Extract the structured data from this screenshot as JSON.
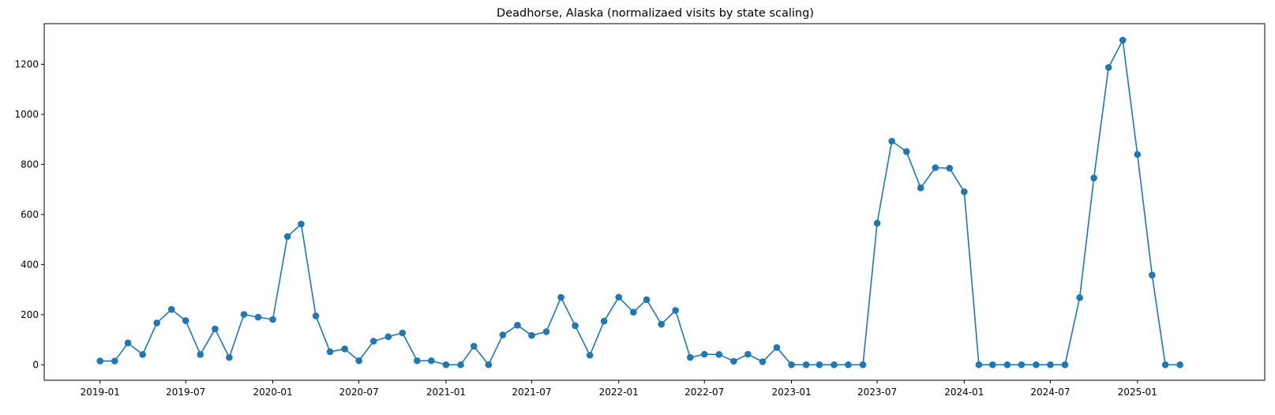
{
  "chart_data": {
    "type": "line",
    "title": "Deadhorse, Alaska (normalizaed visits by state scaling)",
    "xlabel": "",
    "ylabel": "",
    "color": "#1f77b4",
    "markers": true,
    "grid": false,
    "xlim": [
      "2018-09-05",
      "2025-09-27"
    ],
    "ylim": [
      -62,
      1362
    ],
    "x_ticks": [
      "2019-01",
      "2019-07",
      "2020-01",
      "2020-07",
      "2021-01",
      "2021-07",
      "2022-01",
      "2022-07",
      "2023-01",
      "2023-07",
      "2024-01",
      "2024-07",
      "2025-01"
    ],
    "y_ticks": [
      0,
      200,
      400,
      600,
      800,
      1000,
      1200
    ],
    "x": [
      "2019-01",
      "2019-02",
      "2019-03",
      "2019-04",
      "2019-05",
      "2019-06",
      "2019-07",
      "2019-08",
      "2019-09",
      "2019-10",
      "2019-11",
      "2019-12",
      "2020-01",
      "2020-02",
      "2020-03",
      "2020-04",
      "2020-05",
      "2020-06",
      "2020-07",
      "2020-08",
      "2020-09",
      "2020-10",
      "2020-11",
      "2020-12",
      "2021-01",
      "2021-02",
      "2021-03",
      "2021-04",
      "2021-05",
      "2021-06",
      "2021-07",
      "2021-08",
      "2021-09",
      "2021-10",
      "2021-11",
      "2021-12",
      "2022-01",
      "2022-02",
      "2022-03",
      "2022-04",
      "2022-05",
      "2022-06",
      "2022-07",
      "2022-08",
      "2022-09",
      "2022-10",
      "2022-11",
      "2022-12",
      "2023-01",
      "2023-02",
      "2023-03",
      "2023-04",
      "2023-05",
      "2023-06",
      "2023-07",
      "2023-08",
      "2023-09",
      "2023-10",
      "2023-11",
      "2023-12",
      "2024-01",
      "2024-02",
      "2024-03",
      "2024-04",
      "2024-05",
      "2024-06",
      "2024-07",
      "2024-08",
      "2024-09",
      "2024-10",
      "2024-11",
      "2024-12",
      "2025-01",
      "2025-02",
      "2025-03",
      "2025-04"
    ],
    "values": [
      15,
      15,
      87,
      41,
      167,
      221,
      176,
      41,
      143,
      29,
      201,
      190,
      181,
      512,
      562,
      195,
      52,
      63,
      16,
      94,
      112,
      127,
      16,
      16,
      0,
      0,
      74,
      0,
      119,
      158,
      117,
      132,
      269,
      156,
      38,
      174,
      270,
      210,
      260,
      162,
      217,
      29,
      42,
      41,
      14,
      42,
      12,
      69,
      0,
      0,
      0,
      0,
      0,
      0,
      565,
      893,
      851,
      706,
      787,
      785,
      691,
      0,
      0,
      0,
      0,
      0,
      0,
      0,
      268,
      746,
      1187,
      1296,
      840,
      358,
      0,
      0
    ]
  }
}
